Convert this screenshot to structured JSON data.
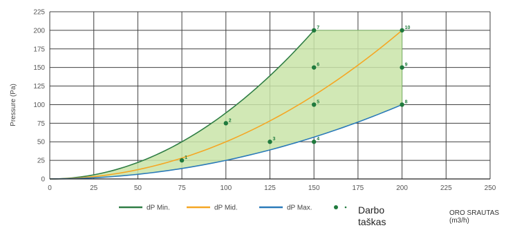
{
  "chart_data": {
    "type": "line",
    "title": "",
    "ylabel": "Pressure (Pa)",
    "xlabel": "ORO SRAUTAS (m3/h)",
    "xlim": [
      0,
      250
    ],
    "ylim": [
      0,
      225
    ],
    "x_ticks": [
      0,
      25,
      50,
      75,
      100,
      125,
      150,
      175,
      200,
      225,
      250
    ],
    "y_ticks": [
      0,
      25,
      50,
      75,
      100,
      125,
      150,
      175,
      200,
      225
    ],
    "grid": true,
    "series": [
      {
        "name": "dP Min.",
        "color": "#2e7d44",
        "x": [
          0,
          25,
          50,
          75,
          100,
          125,
          150
        ],
        "y": [
          0,
          5.6,
          22.2,
          50,
          88.9,
          138.9,
          200
        ]
      },
      {
        "name": "dP Mid.",
        "color": "#f5a623",
        "x": [
          0,
          25,
          50,
          75,
          100,
          125,
          150,
          175,
          200
        ],
        "y": [
          0,
          3.1,
          12.5,
          28.1,
          50,
          78.1,
          112.5,
          153.1,
          200
        ]
      },
      {
        "name": "dP Max.",
        "color": "#2a7ab9",
        "x": [
          0,
          25,
          50,
          75,
          100,
          125,
          150,
          175,
          200
        ],
        "y": [
          0,
          1.6,
          6.3,
          14.1,
          25,
          39.1,
          56.3,
          76.6,
          100
        ]
      }
    ],
    "operating_points": {
      "legend_label": "Darbo taškas",
      "color": "#1f7a3d",
      "points": [
        {
          "label": "1",
          "x": 75,
          "y": 25
        },
        {
          "label": "2",
          "x": 100,
          "y": 75
        },
        {
          "label": "3",
          "x": 125,
          "y": 50
        },
        {
          "label": "4",
          "x": 150,
          "y": 50
        },
        {
          "label": "5",
          "x": 150,
          "y": 100
        },
        {
          "label": "6",
          "x": 150,
          "y": 150
        },
        {
          "label": "7",
          "x": 150,
          "y": 200
        },
        {
          "label": "8",
          "x": 200,
          "y": 100
        },
        {
          "label": "9",
          "x": 200,
          "y": 150
        },
        {
          "label": "10",
          "x": 200,
          "y": 200
        }
      ]
    },
    "working_region": {
      "fill": "#c9e4a8"
    },
    "legend_placement": "bottom"
  }
}
